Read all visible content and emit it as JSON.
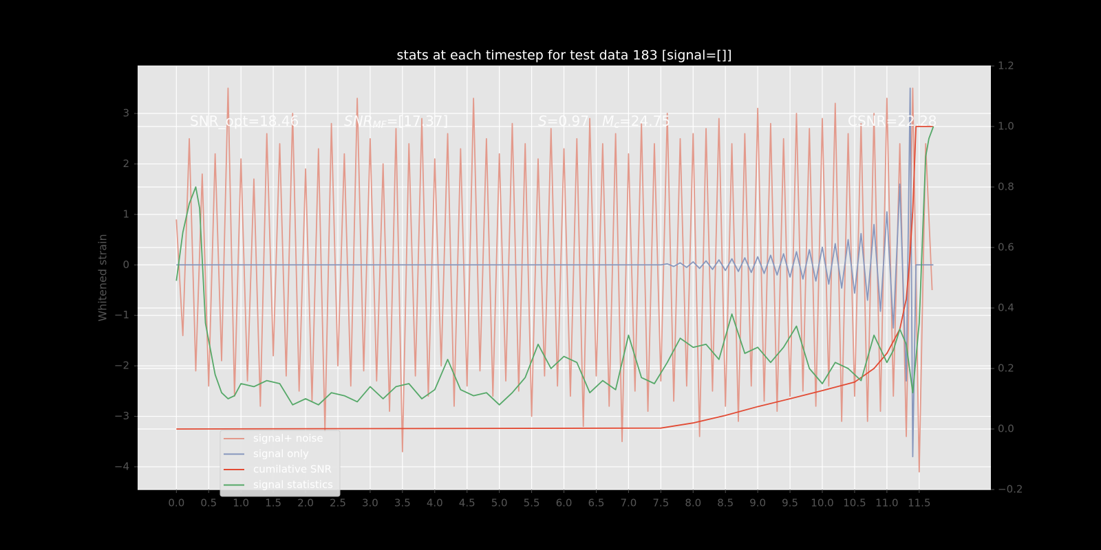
{
  "chart_data": {
    "type": "line",
    "title": "stats at each timestep for test data 183 [signal=[]]",
    "ylabel": "Whitened strain",
    "annotations": [
      [
        "SNR_opt=18.46"
      ],
      [
        "SNR",
        "MF",
        "=[17.37]"
      ],
      [
        "S",
        "=0.97   ",
        "M",
        "c",
        "=24.75"
      ],
      [
        "CSNR=22.28"
      ]
    ],
    "xlim": [
      -0.6,
      12.61
    ],
    "ylim": [
      -4.45,
      3.94
    ],
    "y2lim": [
      -0.2,
      1.2
    ],
    "xticks": [
      {
        "value": 0,
        "label": "0.0"
      },
      0.5,
      {
        "value": 1,
        "label": "1.0"
      },
      1.5,
      {
        "value": 2,
        "label": "2.0"
      },
      2.5,
      {
        "value": 3,
        "label": "3.0"
      },
      3.5,
      {
        "value": 4,
        "label": "4.0"
      },
      4.5,
      {
        "value": 5,
        "label": "5.0"
      },
      5.5,
      {
        "value": 6,
        "label": "6.0"
      },
      6.5,
      {
        "value": 7,
        "label": "7.0"
      },
      7.5,
      {
        "value": 8,
        "label": "8.0"
      },
      8.5,
      {
        "value": 9,
        "label": "9.0"
      },
      9.5,
      {
        "value": 10,
        "label": "10.0"
      },
      10.5,
      {
        "value": 11,
        "label": "11.0"
      },
      11.5
    ],
    "yticks": [
      {
        "value": -4,
        "label": "−4"
      },
      {
        "value": -3,
        "label": "−3"
      },
      {
        "value": -2,
        "label": "−2"
      },
      {
        "value": -1,
        "label": "−1"
      },
      0,
      1,
      2,
      3
    ],
    "y2ticks": [
      {
        "value": -0.2,
        "label": "−0.2"
      },
      {
        "value": 0,
        "label": "0.0"
      },
      0.2,
      0.4,
      0.6,
      0.8,
      {
        "value": 1,
        "label": "1.0"
      },
      1.2
    ],
    "grid": true,
    "legend": "lower left",
    "series": [
      {
        "name": "signal+ noise",
        "color": "#e3998b",
        "x": [
          0,
          0.1,
          0.2,
          0.3,
          0.4,
          0.5,
          0.6,
          0.7,
          0.8,
          0.9,
          1,
          1.1,
          1.2,
          1.3,
          1.4,
          1.5,
          1.6,
          1.7,
          1.8,
          1.9,
          2,
          2.1,
          2.2,
          2.3,
          2.4,
          2.5,
          2.6,
          2.7,
          2.8,
          2.9,
          3,
          3.1,
          3.2,
          3.3,
          3.4,
          3.5,
          3.6,
          3.7,
          3.8,
          3.9,
          4,
          4.1,
          4.2,
          4.3,
          4.4,
          4.5,
          4.6,
          4.7,
          4.8,
          4.9,
          5,
          5.1,
          5.2,
          5.3,
          5.4,
          5.5,
          5.6,
          5.7,
          5.8,
          5.9,
          6,
          6.1,
          6.2,
          6.3,
          6.4,
          6.5,
          6.6,
          6.7,
          6.8,
          6.9,
          7,
          7.1,
          7.2,
          7.3,
          7.4,
          7.5,
          7.6,
          7.7,
          7.8,
          7.9,
          8,
          8.1,
          8.2,
          8.3,
          8.4,
          8.5,
          8.6,
          8.7,
          8.8,
          8.9,
          9,
          9.1,
          9.2,
          9.3,
          9.4,
          9.5,
          9.6,
          9.7,
          9.8,
          9.9,
          10,
          10.1,
          10.2,
          10.3,
          10.4,
          10.5,
          10.6,
          10.7,
          10.8,
          10.9,
          11,
          11.1,
          11.2,
          11.3,
          11.4,
          11.5,
          11.6,
          11.7
        ],
        "values": [
          0.9,
          -1.4,
          2.5,
          -2.1,
          1.8,
          -2.4,
          2.2,
          -1.9,
          3.5,
          -2.6,
          2.1,
          -2.3,
          1.7,
          -2.8,
          2.6,
          -1.8,
          2.4,
          -2.2,
          3.0,
          -2.5,
          1.9,
          -2.7,
          2.3,
          -3.3,
          2.8,
          -2.0,
          2.2,
          -2.4,
          3.3,
          -2.1,
          2.5,
          -2.3,
          2.0,
          -2.9,
          2.7,
          -3.7,
          2.4,
          -2.2,
          2.9,
          -2.6,
          2.1,
          -2.0,
          2.6,
          -2.8,
          2.3,
          -2.4,
          3.3,
          -2.1,
          2.5,
          -2.6,
          2.2,
          -2.3,
          2.8,
          -2.5,
          2.4,
          -3.0,
          2.1,
          -2.2,
          2.7,
          -2.4,
          2.3,
          -2.6,
          2.5,
          -3.2,
          2.9,
          -2.2,
          2.4,
          -2.8,
          2.6,
          -3.5,
          2.2,
          -2.5,
          2.8,
          -2.9,
          2.4,
          -2.3,
          3.0,
          -2.7,
          2.5,
          -2.4,
          2.6,
          -3.4,
          2.7,
          -2.5,
          2.9,
          -2.8,
          2.4,
          -3.1,
          2.6,
          -2.4,
          3.1,
          -2.7,
          2.8,
          -2.9,
          2.5,
          -2.6,
          3.0,
          -2.5,
          2.7,
          -2.8,
          2.9,
          -2.4,
          3.2,
          -3.1,
          2.6,
          -2.6,
          2.8,
          -3.1,
          3.0,
          -2.9,
          3.3,
          -2.6,
          2.4,
          -3.4,
          3.5,
          -4.1,
          2.4,
          -0.5
        ]
      },
      {
        "name": "signal only",
        "color": "#8797bd",
        "x": [
          0,
          7.5,
          7.6,
          7.7,
          7.8,
          7.9,
          8,
          8.1,
          8.2,
          8.3,
          8.4,
          8.5,
          8.6,
          8.7,
          8.8,
          8.9,
          9,
          9.1,
          9.2,
          9.3,
          9.4,
          9.5,
          9.6,
          9.7,
          9.8,
          9.9,
          10,
          10.1,
          10.2,
          10.3,
          10.4,
          10.5,
          10.6,
          10.7,
          10.8,
          10.9,
          11,
          11.1,
          11.2,
          11.3,
          11.36,
          11.4,
          11.45,
          11.72
        ],
        "values": [
          0,
          0,
          0.02,
          -0.03,
          0.04,
          -0.05,
          0.06,
          -0.07,
          0.08,
          -0.09,
          0.1,
          -0.11,
          0.12,
          -0.13,
          0.14,
          -0.15,
          0.16,
          -0.17,
          0.19,
          -0.2,
          0.22,
          -0.24,
          0.26,
          -0.28,
          0.3,
          -0.32,
          0.35,
          -0.38,
          0.42,
          -0.46,
          0.5,
          -0.56,
          0.62,
          -0.7,
          0.8,
          -0.92,
          1.05,
          -1.25,
          1.6,
          -2.3,
          3.5,
          -3.8,
          0,
          0
        ]
      },
      {
        "name": "cumilative SNR",
        "color": "#e24a33",
        "axis": "y2",
        "x": [
          0,
          7.5,
          8,
          8.5,
          9,
          9.5,
          10,
          10.5,
          10.8,
          11,
          11.2,
          11.3,
          11.35,
          11.4,
          11.45,
          11.72
        ],
        "values": [
          0,
          0.003,
          0.02,
          0.045,
          0.074,
          0.1,
          0.127,
          0.155,
          0.2,
          0.25,
          0.33,
          0.43,
          0.55,
          0.72,
          1.0,
          1.0
        ]
      },
      {
        "name": "signal statistics",
        "color": "#55a868",
        "axis": "y2",
        "x": [
          0,
          0.1,
          0.2,
          0.3,
          0.36,
          0.45,
          0.6,
          0.7,
          0.8,
          0.9,
          1,
          1.2,
          1.4,
          1.6,
          1.8,
          2,
          2.2,
          2.4,
          2.6,
          2.8,
          3,
          3.2,
          3.4,
          3.6,
          3.8,
          4,
          4.2,
          4.4,
          4.6,
          4.8,
          5,
          5.2,
          5.4,
          5.6,
          5.8,
          6,
          6.2,
          6.4,
          6.6,
          6.8,
          7,
          7.2,
          7.4,
          7.6,
          7.8,
          8,
          8.2,
          8.4,
          8.6,
          8.8,
          9,
          9.2,
          9.4,
          9.6,
          9.8,
          10,
          10.2,
          10.4,
          10.6,
          10.8,
          11,
          11.1,
          11.2,
          11.3,
          11.4,
          11.5,
          11.6,
          11.65,
          11.72
        ],
        "values": [
          0.49,
          0.65,
          0.745,
          0.8,
          0.73,
          0.35,
          0.18,
          0.12,
          0.1,
          0.11,
          0.15,
          0.14,
          0.16,
          0.15,
          0.08,
          0.1,
          0.08,
          0.12,
          0.11,
          0.09,
          0.14,
          0.1,
          0.14,
          0.15,
          0.1,
          0.13,
          0.23,
          0.13,
          0.11,
          0.12,
          0.08,
          0.12,
          0.17,
          0.28,
          0.2,
          0.24,
          0.22,
          0.12,
          0.16,
          0.13,
          0.31,
          0.17,
          0.15,
          0.22,
          0.3,
          0.27,
          0.28,
          0.23,
          0.38,
          0.25,
          0.27,
          0.22,
          0.27,
          0.34,
          0.2,
          0.15,
          0.22,
          0.2,
          0.16,
          0.31,
          0.22,
          0.26,
          0.33,
          0.28,
          0.12,
          0.35,
          0.9,
          0.96,
          1.0
        ]
      }
    ]
  }
}
